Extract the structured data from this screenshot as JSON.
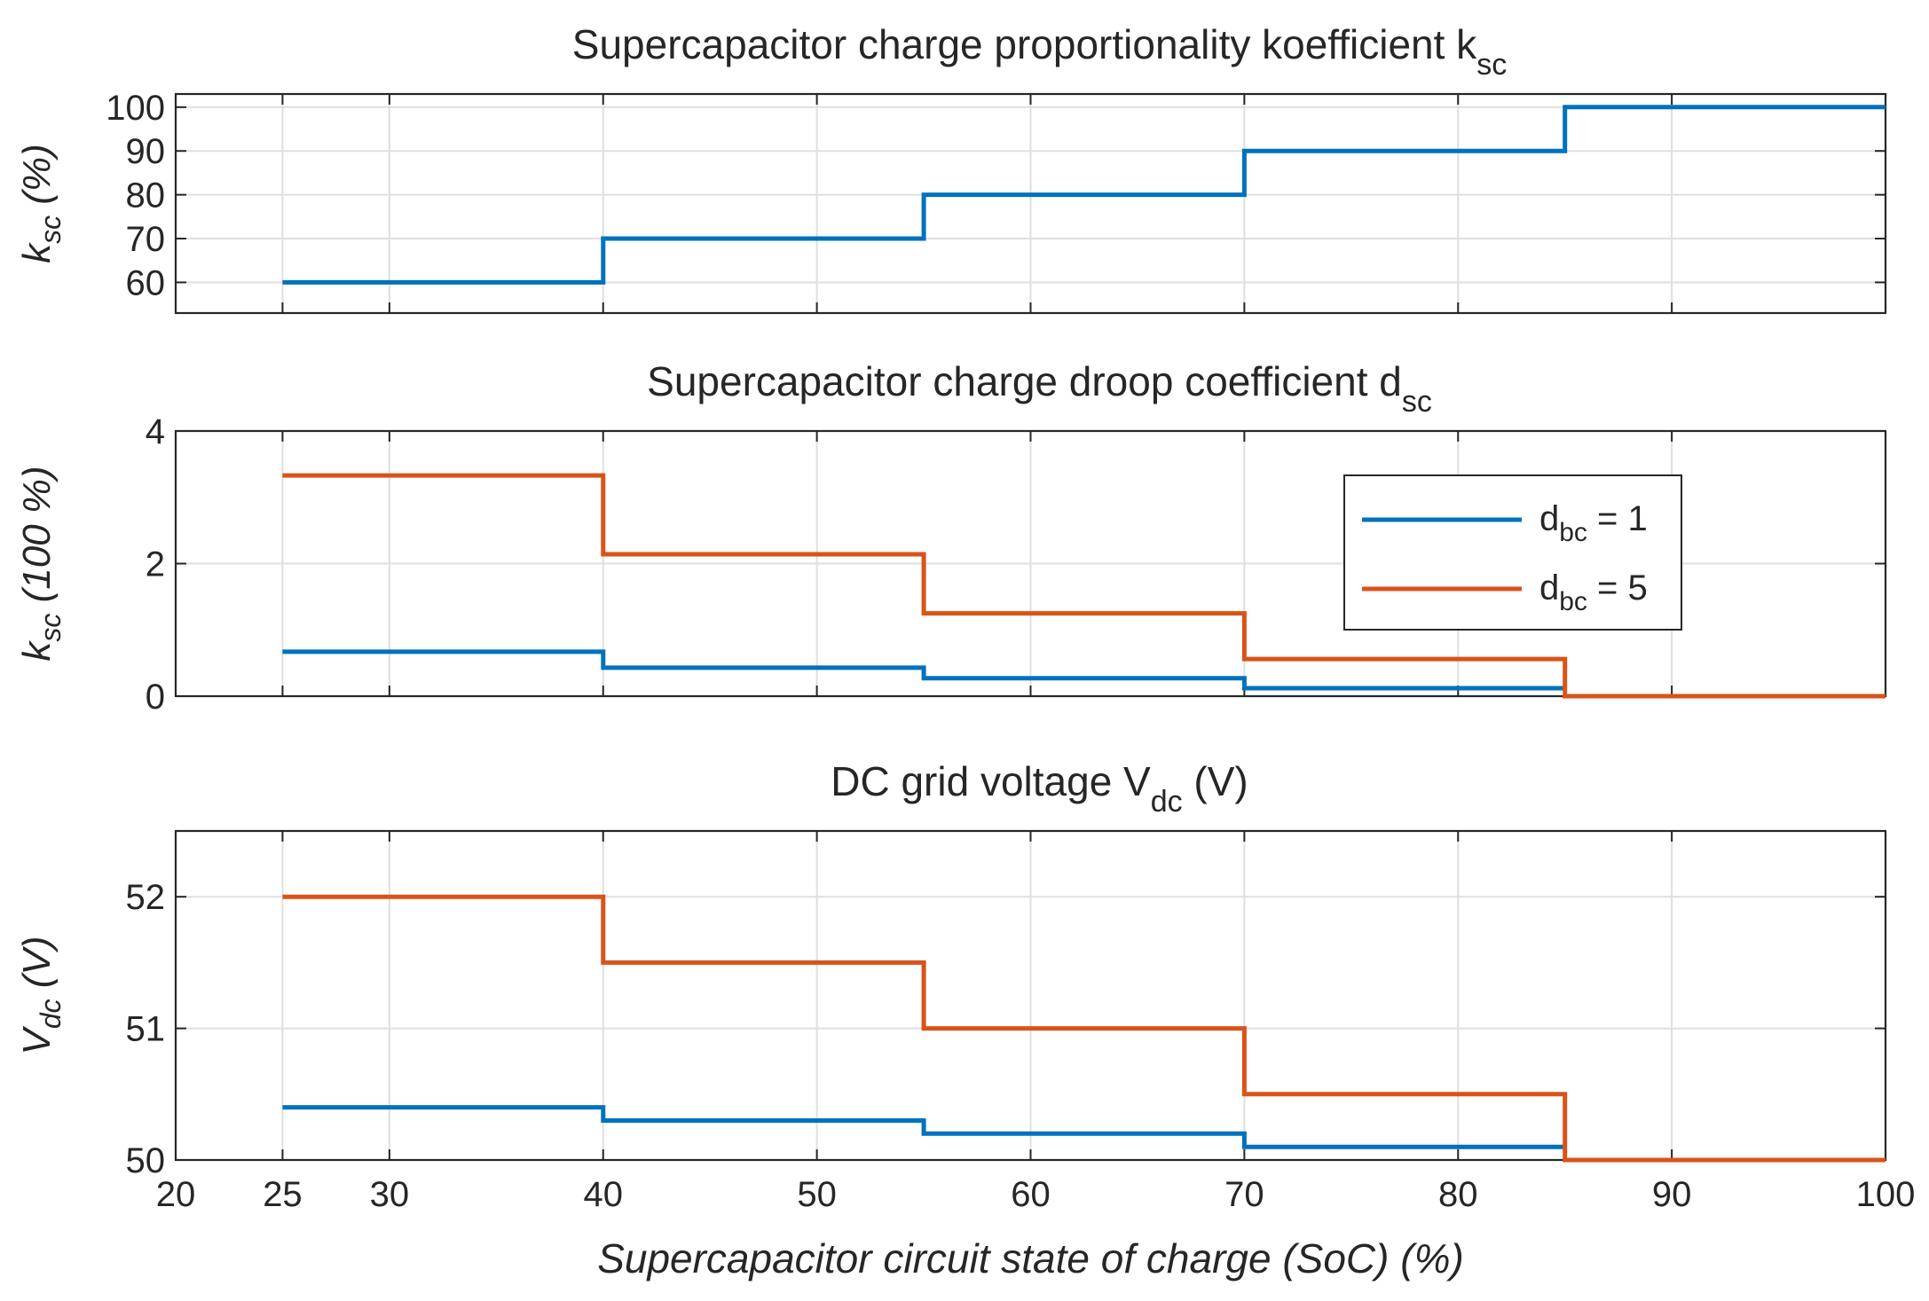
{
  "colors": {
    "series_blue": "#0072BD",
    "series_orange": "#D95319",
    "axis": "#262626",
    "grid": "#dfdfdf",
    "background": "#ffffff"
  },
  "chart_data": [
    {
      "type": "line",
      "step": true,
      "title_main": "Supercapacitor charge proportionality koefficient k",
      "title_sub": "sc",
      "ylabel_main": "k",
      "ylabel_sub": "sc",
      "ylabel_suffix": " (%)",
      "xlabel": "",
      "xlim": [
        20,
        100
      ],
      "ylim": [
        53,
        103
      ],
      "xticks": [
        25,
        30,
        40,
        50,
        60,
        70,
        80,
        90,
        100
      ],
      "xtick_labels_shown": false,
      "yticks": [
        60,
        70,
        80,
        90,
        100
      ],
      "ytick_labels": [
        "60",
        "70",
        "80",
        "90",
        "100"
      ],
      "grid": true,
      "legend": null,
      "series": [
        {
          "name": "k_sc",
          "color": "#0072BD",
          "x": [
            25,
            40,
            40,
            55,
            55,
            70,
            70,
            85,
            85,
            100
          ],
          "y": [
            60,
            60,
            70,
            70,
            80,
            80,
            90,
            90,
            100,
            100
          ]
        }
      ]
    },
    {
      "type": "line",
      "step": true,
      "title_main": "Supercapacitor charge droop coefficient d",
      "title_sub": "sc",
      "ylabel_main": "k",
      "ylabel_sub": "sc",
      "ylabel_suffix": " (100 %)",
      "xlabel": "",
      "xlim": [
        20,
        100
      ],
      "ylim": [
        0,
        4
      ],
      "xticks": [
        25,
        30,
        40,
        50,
        60,
        70,
        80,
        90,
        100
      ],
      "xtick_labels_shown": false,
      "yticks": [
        0,
        2,
        4
      ],
      "ytick_labels": [
        "0",
        "2",
        "4"
      ],
      "grid": true,
      "legend": {
        "position": "top-right",
        "entries": [
          {
            "main": "d",
            "sub": "bc",
            "suffix": " = 1",
            "color": "#0072BD"
          },
          {
            "main": "d",
            "sub": "bc",
            "suffix": " = 5",
            "color": "#D95319"
          }
        ]
      },
      "series": [
        {
          "name": "d_bc = 1",
          "color": "#0072BD",
          "x": [
            25,
            40,
            40,
            55,
            55,
            70,
            70,
            85
          ],
          "y": [
            0.67,
            0.67,
            0.43,
            0.43,
            0.27,
            0.27,
            0.12,
            0.12
          ]
        },
        {
          "name": "d_bc = 5",
          "color": "#D95319",
          "x": [
            25,
            40,
            40,
            55,
            55,
            70,
            70,
            85,
            85,
            100
          ],
          "y": [
            3.33,
            3.33,
            2.14,
            2.14,
            1.25,
            1.25,
            0.56,
            0.56,
            0,
            0
          ]
        }
      ]
    },
    {
      "type": "line",
      "step": true,
      "title_main": "DC grid voltage V",
      "title_sub": "dc",
      "title_suffix": " (V)",
      "ylabel_main": "V",
      "ylabel_sub": "dc",
      "ylabel_suffix": " (V)",
      "xlabel": "Supercapacitor circuit state of charge (SoC) (%)",
      "xlim": [
        20,
        100
      ],
      "ylim": [
        50,
        52.5
      ],
      "xticks": [
        20,
        25,
        30,
        40,
        50,
        60,
        70,
        80,
        90,
        100
      ],
      "xtick_labels_shown": true,
      "xtick_labels": [
        "20",
        "25",
        "30",
        "40",
        "50",
        "60",
        "70",
        "80",
        "90",
        "100"
      ],
      "yticks": [
        50,
        51,
        52
      ],
      "ytick_labels": [
        "50",
        "51",
        "52"
      ],
      "grid": true,
      "legend": null,
      "series": [
        {
          "name": "d_bc = 1",
          "color": "#0072BD",
          "x": [
            25,
            40,
            40,
            55,
            55,
            70,
            70,
            85
          ],
          "y": [
            50.4,
            50.4,
            50.3,
            50.3,
            50.2,
            50.2,
            50.1,
            50.1
          ]
        },
        {
          "name": "d_bc = 5",
          "color": "#D95319",
          "x": [
            25,
            40,
            40,
            55,
            55,
            70,
            70,
            85,
            85,
            100
          ],
          "y": [
            52,
            52,
            51.5,
            51.5,
            51,
            51,
            50.5,
            50.5,
            50,
            50
          ]
        }
      ]
    }
  ]
}
